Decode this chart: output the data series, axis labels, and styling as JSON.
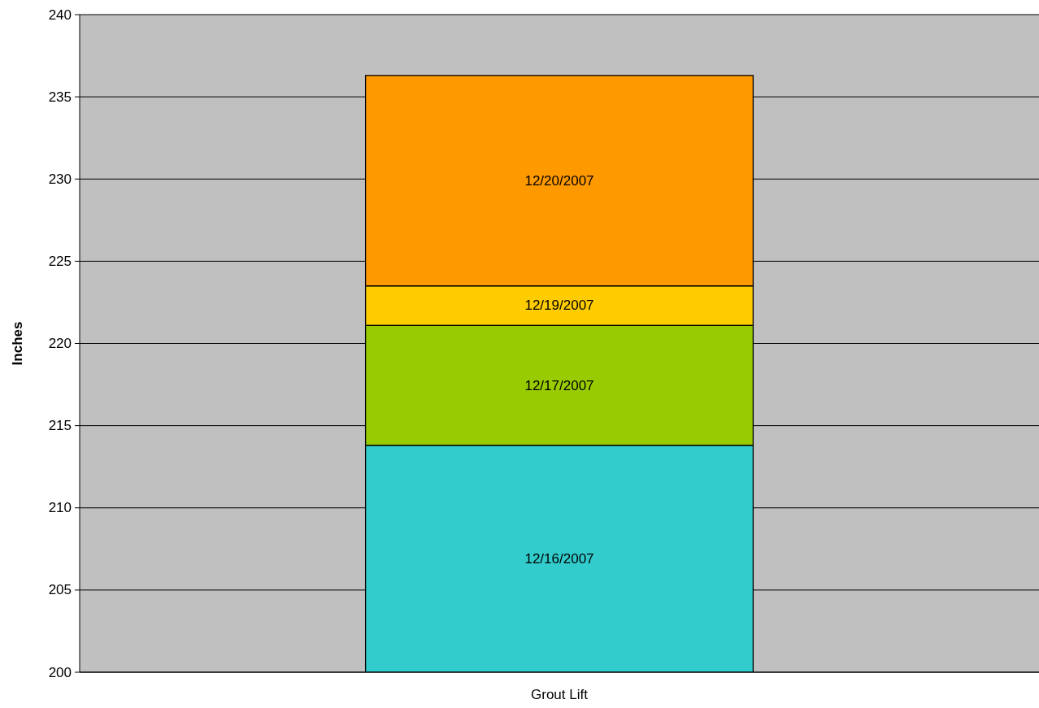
{
  "chart_data": {
    "type": "bar",
    "ylabel": "Inches",
    "categories": [
      "Grout Lift"
    ],
    "series": [
      {
        "name": "12/16/2007",
        "color": "#33cccc",
        "base": [
          200
        ],
        "values": [
          13.8
        ]
      },
      {
        "name": "12/17/2007",
        "color": "#99cc00",
        "base": [
          213.8
        ],
        "values": [
          7.3
        ]
      },
      {
        "name": "12/19/2007",
        "color": "#ffcc00",
        "base": [
          221.1
        ],
        "values": [
          2.4
        ]
      },
      {
        "name": "12/20/2007",
        "color": "#ff9900",
        "base": [
          223.5
        ],
        "values": [
          12.8
        ]
      }
    ],
    "ylim": [
      200,
      240
    ],
    "yticks": [
      200,
      205,
      210,
      215,
      220,
      225,
      230,
      235,
      240
    ],
    "grid": "y"
  }
}
